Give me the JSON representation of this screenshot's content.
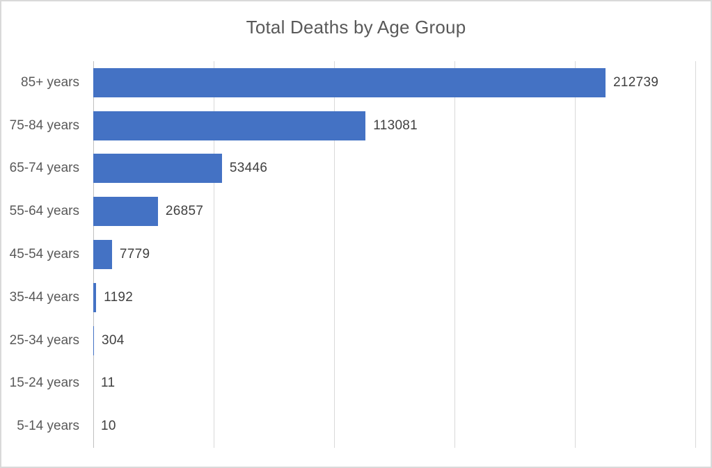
{
  "chart_data": {
    "type": "bar",
    "orientation": "horizontal",
    "title": "Total Deaths by Age Group",
    "categories": [
      "85+ years",
      "75-84 years",
      "65-74 years",
      "55-64 years",
      "45-54 years",
      "35-44 years",
      "25-34 years",
      "15-24 years",
      "5-14 years"
    ],
    "values": [
      212739,
      113081,
      53446,
      26857,
      7779,
      1192,
      304,
      11,
      10
    ],
    "xlabel": "",
    "ylabel": "",
    "xlim": [
      0,
      250000
    ],
    "gridline_interval": 50000,
    "grid": true,
    "legend": false,
    "data_labels": true,
    "colors": {
      "bar": "#4472C4",
      "gridline": "#D9D9D9",
      "axis_line": "#BFBFBF",
      "title_text": "#595959",
      "category_text": "#595959",
      "value_text": "#404040",
      "border": "#D9D9D9",
      "background": "#FFFFFF"
    }
  }
}
